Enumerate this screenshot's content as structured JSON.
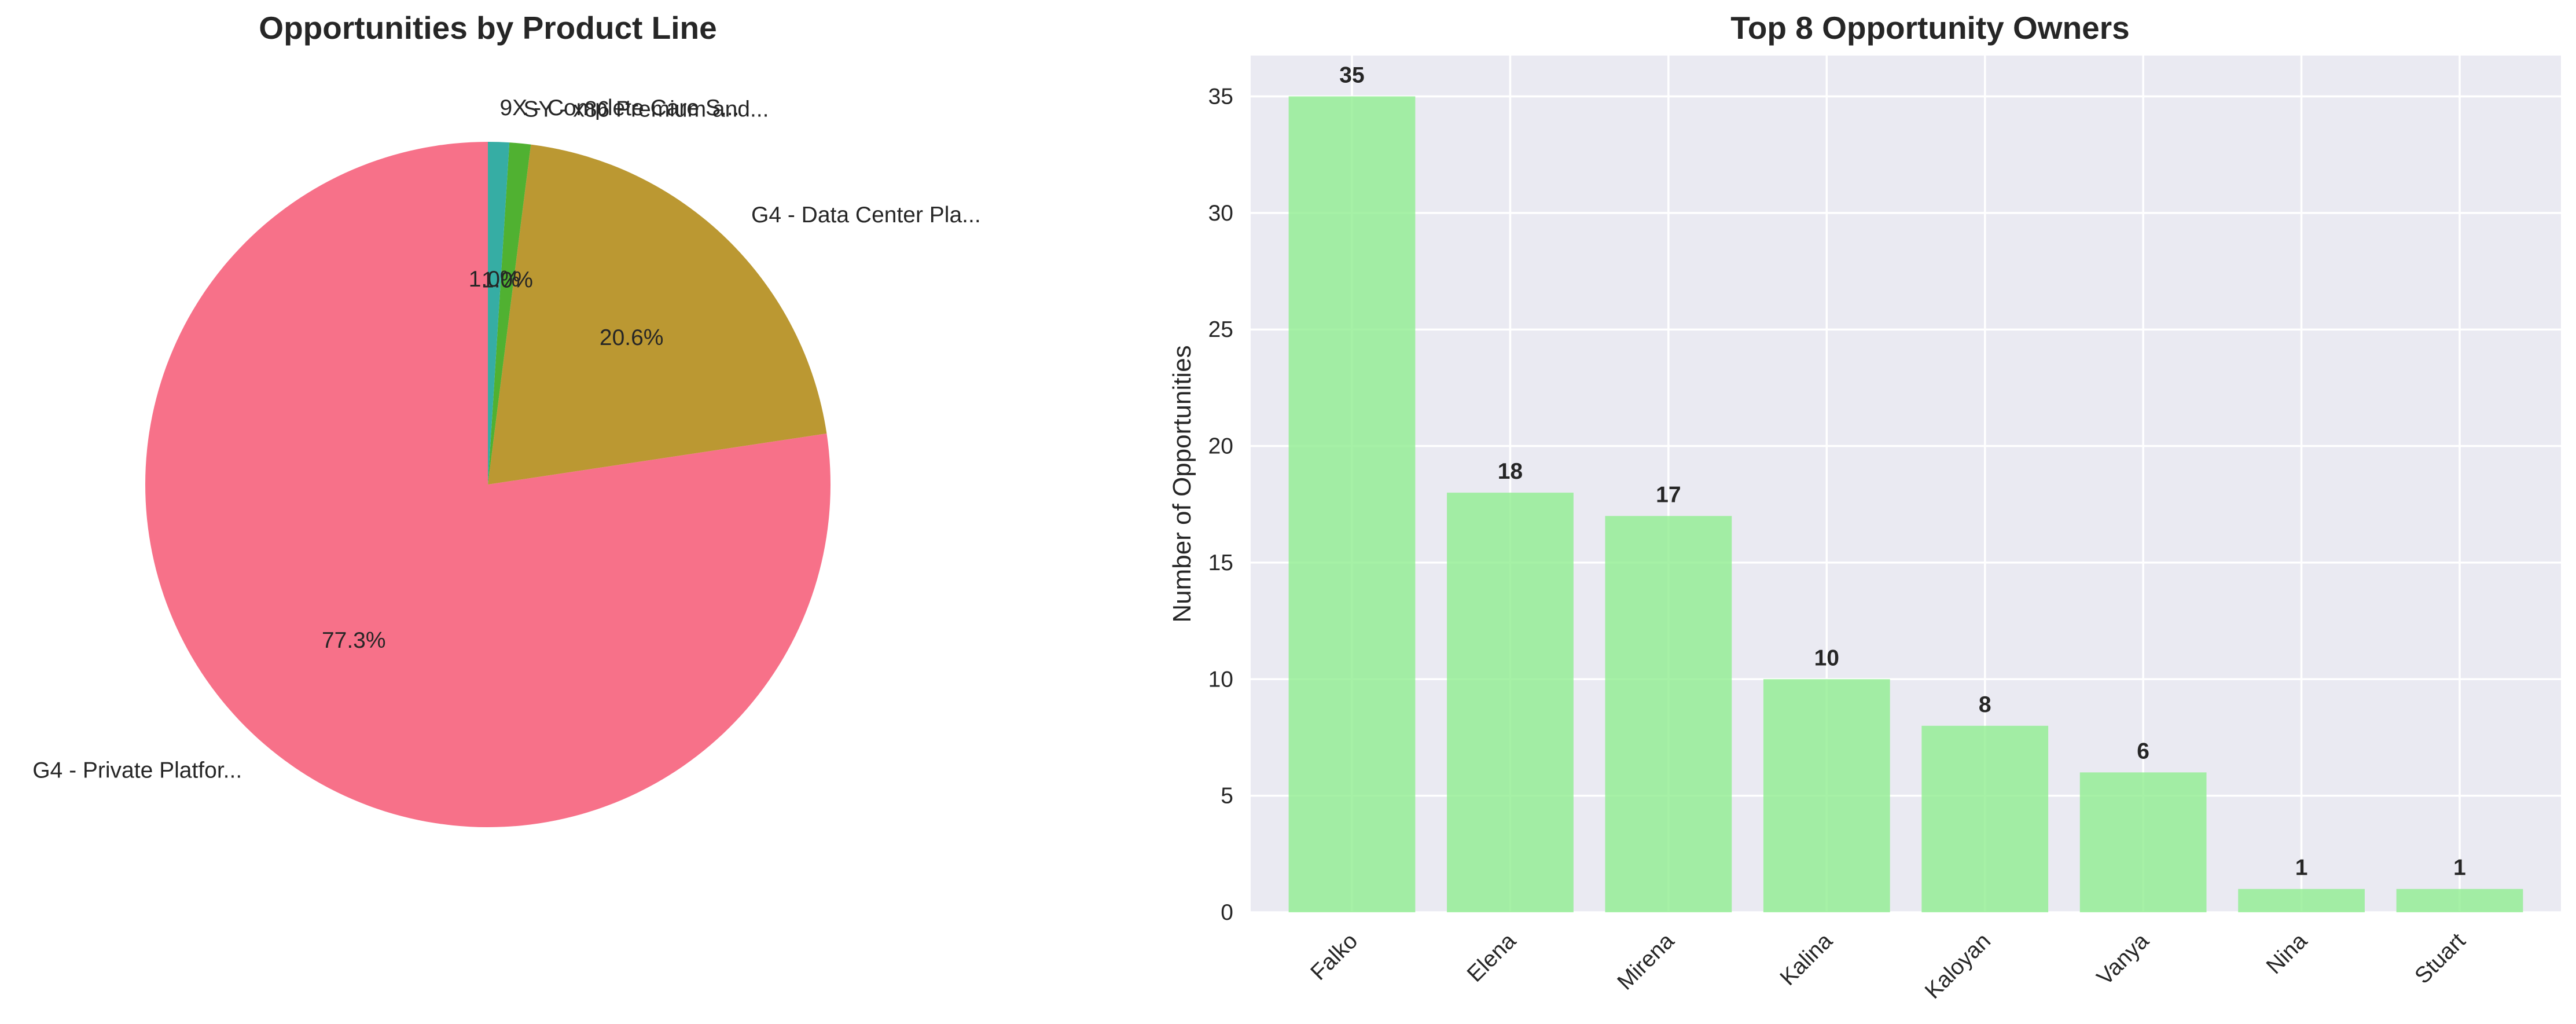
{
  "chart_data": [
    {
      "type": "pie",
      "title": "Opportunities by Product Line",
      "start_angle": 90,
      "counterclock": true,
      "slices": [
        {
          "label": "G4 - Private Platfor...",
          "value": 77.3,
          "pct_text": "77.3%",
          "color": "#f77189"
        },
        {
          "label": "G4 - Data Center Pla...",
          "value": 20.6,
          "pct_text": "20.6%",
          "color": "#bb9832"
        },
        {
          "label": "SY - x86 Premium and...",
          "value": 1.0,
          "pct_text": "1.0%",
          "color": "#50b131"
        },
        {
          "label": "9X - Complete Care S...",
          "value": 1.0,
          "pct_text": "1.0%",
          "color": "#36ada4"
        }
      ]
    },
    {
      "type": "bar",
      "title": "Top 8 Opportunity Owners",
      "xlabel": "",
      "ylabel": "Number of Opportunities",
      "categories": [
        "Falko",
        "Elena",
        "Mirena",
        "Kalina",
        "Kaloyan",
        "Vanya",
        "Nina",
        "Stuart"
      ],
      "values": [
        35,
        18,
        17,
        10,
        8,
        6,
        1,
        1
      ],
      "value_labels": [
        "35",
        "18",
        "17",
        "10",
        "8",
        "6",
        "1",
        "1"
      ],
      "ylim": [
        0,
        36.75
      ],
      "yticks": [
        0,
        5,
        10,
        15,
        20,
        25,
        30,
        35
      ],
      "grid": true,
      "bar_color": "#90ee90",
      "background_color": "#eaeaf2"
    }
  ]
}
